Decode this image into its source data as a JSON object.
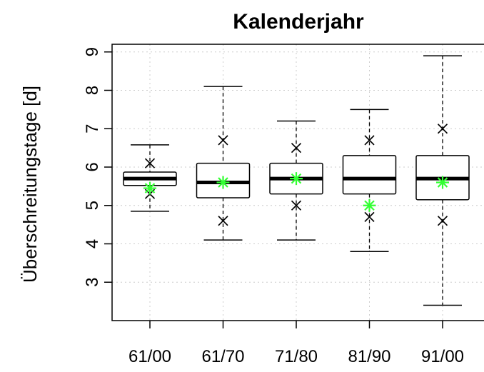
{
  "chart_data": {
    "type": "box",
    "title": "Kalenderjahr",
    "xlabel": "",
    "ylabel": "Überschreitungstage [d]",
    "ylim": [
      2.0,
      9.2
    ],
    "yticks": [
      3,
      4,
      5,
      6,
      7,
      8,
      9
    ],
    "grid": true,
    "categories": [
      "61/00",
      "61/70",
      "71/80",
      "81/90",
      "91/00"
    ],
    "boxes": [
      {
        "whisker_low": 4.85,
        "q1": 5.52,
        "median": 5.7,
        "q3": 5.87,
        "whisker_high": 6.58
      },
      {
        "whisker_low": 4.1,
        "q1": 5.2,
        "median": 5.6,
        "q3": 6.1,
        "whisker_high": 8.1
      },
      {
        "whisker_low": 4.1,
        "q1": 5.3,
        "median": 5.7,
        "q3": 6.1,
        "whisker_high": 7.2
      },
      {
        "whisker_low": 3.8,
        "q1": 5.3,
        "median": 5.7,
        "q3": 6.3,
        "whisker_high": 7.5
      },
      {
        "whisker_low": 2.4,
        "q1": 5.15,
        "median": 5.7,
        "q3": 6.3,
        "whisker_high": 8.9
      }
    ],
    "cross_markers": [
      [
        5.3,
        6.1
      ],
      [
        4.6,
        6.7
      ],
      [
        5.0,
        6.5
      ],
      [
        4.7,
        6.7
      ],
      [
        4.6,
        7.0
      ]
    ],
    "mean_markers": [
      5.45,
      5.6,
      5.7,
      5.0,
      5.6
    ],
    "colors": {
      "mean_marker": "#33ff33",
      "box": "#000000",
      "grid": "#cccccc"
    }
  }
}
